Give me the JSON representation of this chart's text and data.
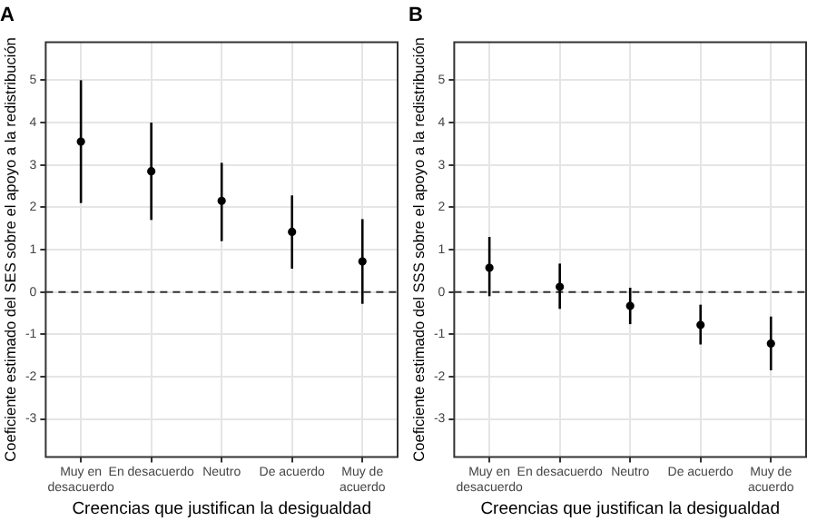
{
  "chart_data": [
    {
      "type": "scatter",
      "title": "A",
      "xlabel": "Creencias que justifican la desigualdad",
      "ylabel": "Coeficiente estimado del SES sobre el apoyo a la redistribución",
      "categories": [
        "Muy en\ndesacuerdo",
        "En desacuerdo",
        "Neutro",
        "De acuerdo",
        "Muy de\nacuerdo"
      ],
      "series": [
        {
          "color": "#000000",
          "values": [
            3.55,
            2.85,
            2.15,
            1.42,
            0.72
          ],
          "errors": [
            [
              2.1,
              5.0
            ],
            [
              1.7,
              4.0
            ],
            [
              1.2,
              3.05
            ],
            [
              0.55,
              2.28
            ],
            [
              -0.28,
              1.72
            ]
          ]
        }
      ],
      "ylim": [
        -3.9,
        5.9
      ],
      "yticks": [
        -3,
        -2,
        -1,
        0,
        1,
        2,
        3,
        4,
        5
      ],
      "grid": true,
      "marker": "circle",
      "legend": false,
      "ref_lines": [
        {
          "axis": "y",
          "value": 0,
          "line_style": "dashed",
          "color": "#333333"
        }
      ]
    },
    {
      "type": "scatter",
      "title": "B",
      "xlabel": "Creencias que justifican la desigualdad",
      "ylabel": "Coeficiente estimado del SSS sobre el apoyo a la redistribución",
      "categories": [
        "Muy en\ndesacuerdo",
        "En desacuerdo",
        "Neutro",
        "De acuerdo",
        "Muy de\nacuerdo"
      ],
      "series": [
        {
          "color": "#000000",
          "values": [
            0.57,
            0.12,
            -0.33,
            -0.78,
            -1.22
          ],
          "errors": [
            [
              -0.1,
              1.3
            ],
            [
              -0.4,
              0.67
            ],
            [
              -0.76,
              0.1
            ],
            [
              -1.24,
              -0.3
            ],
            [
              -1.85,
              -0.58
            ]
          ]
        }
      ],
      "ylim": [
        -3.9,
        5.9
      ],
      "yticks": [
        -3,
        -2,
        -1,
        0,
        1,
        2,
        3,
        4,
        5
      ],
      "grid": true,
      "marker": "circle",
      "legend": false,
      "ref_lines": [
        {
          "axis": "y",
          "value": 0,
          "line_style": "dashed",
          "color": "#333333"
        }
      ]
    }
  ]
}
